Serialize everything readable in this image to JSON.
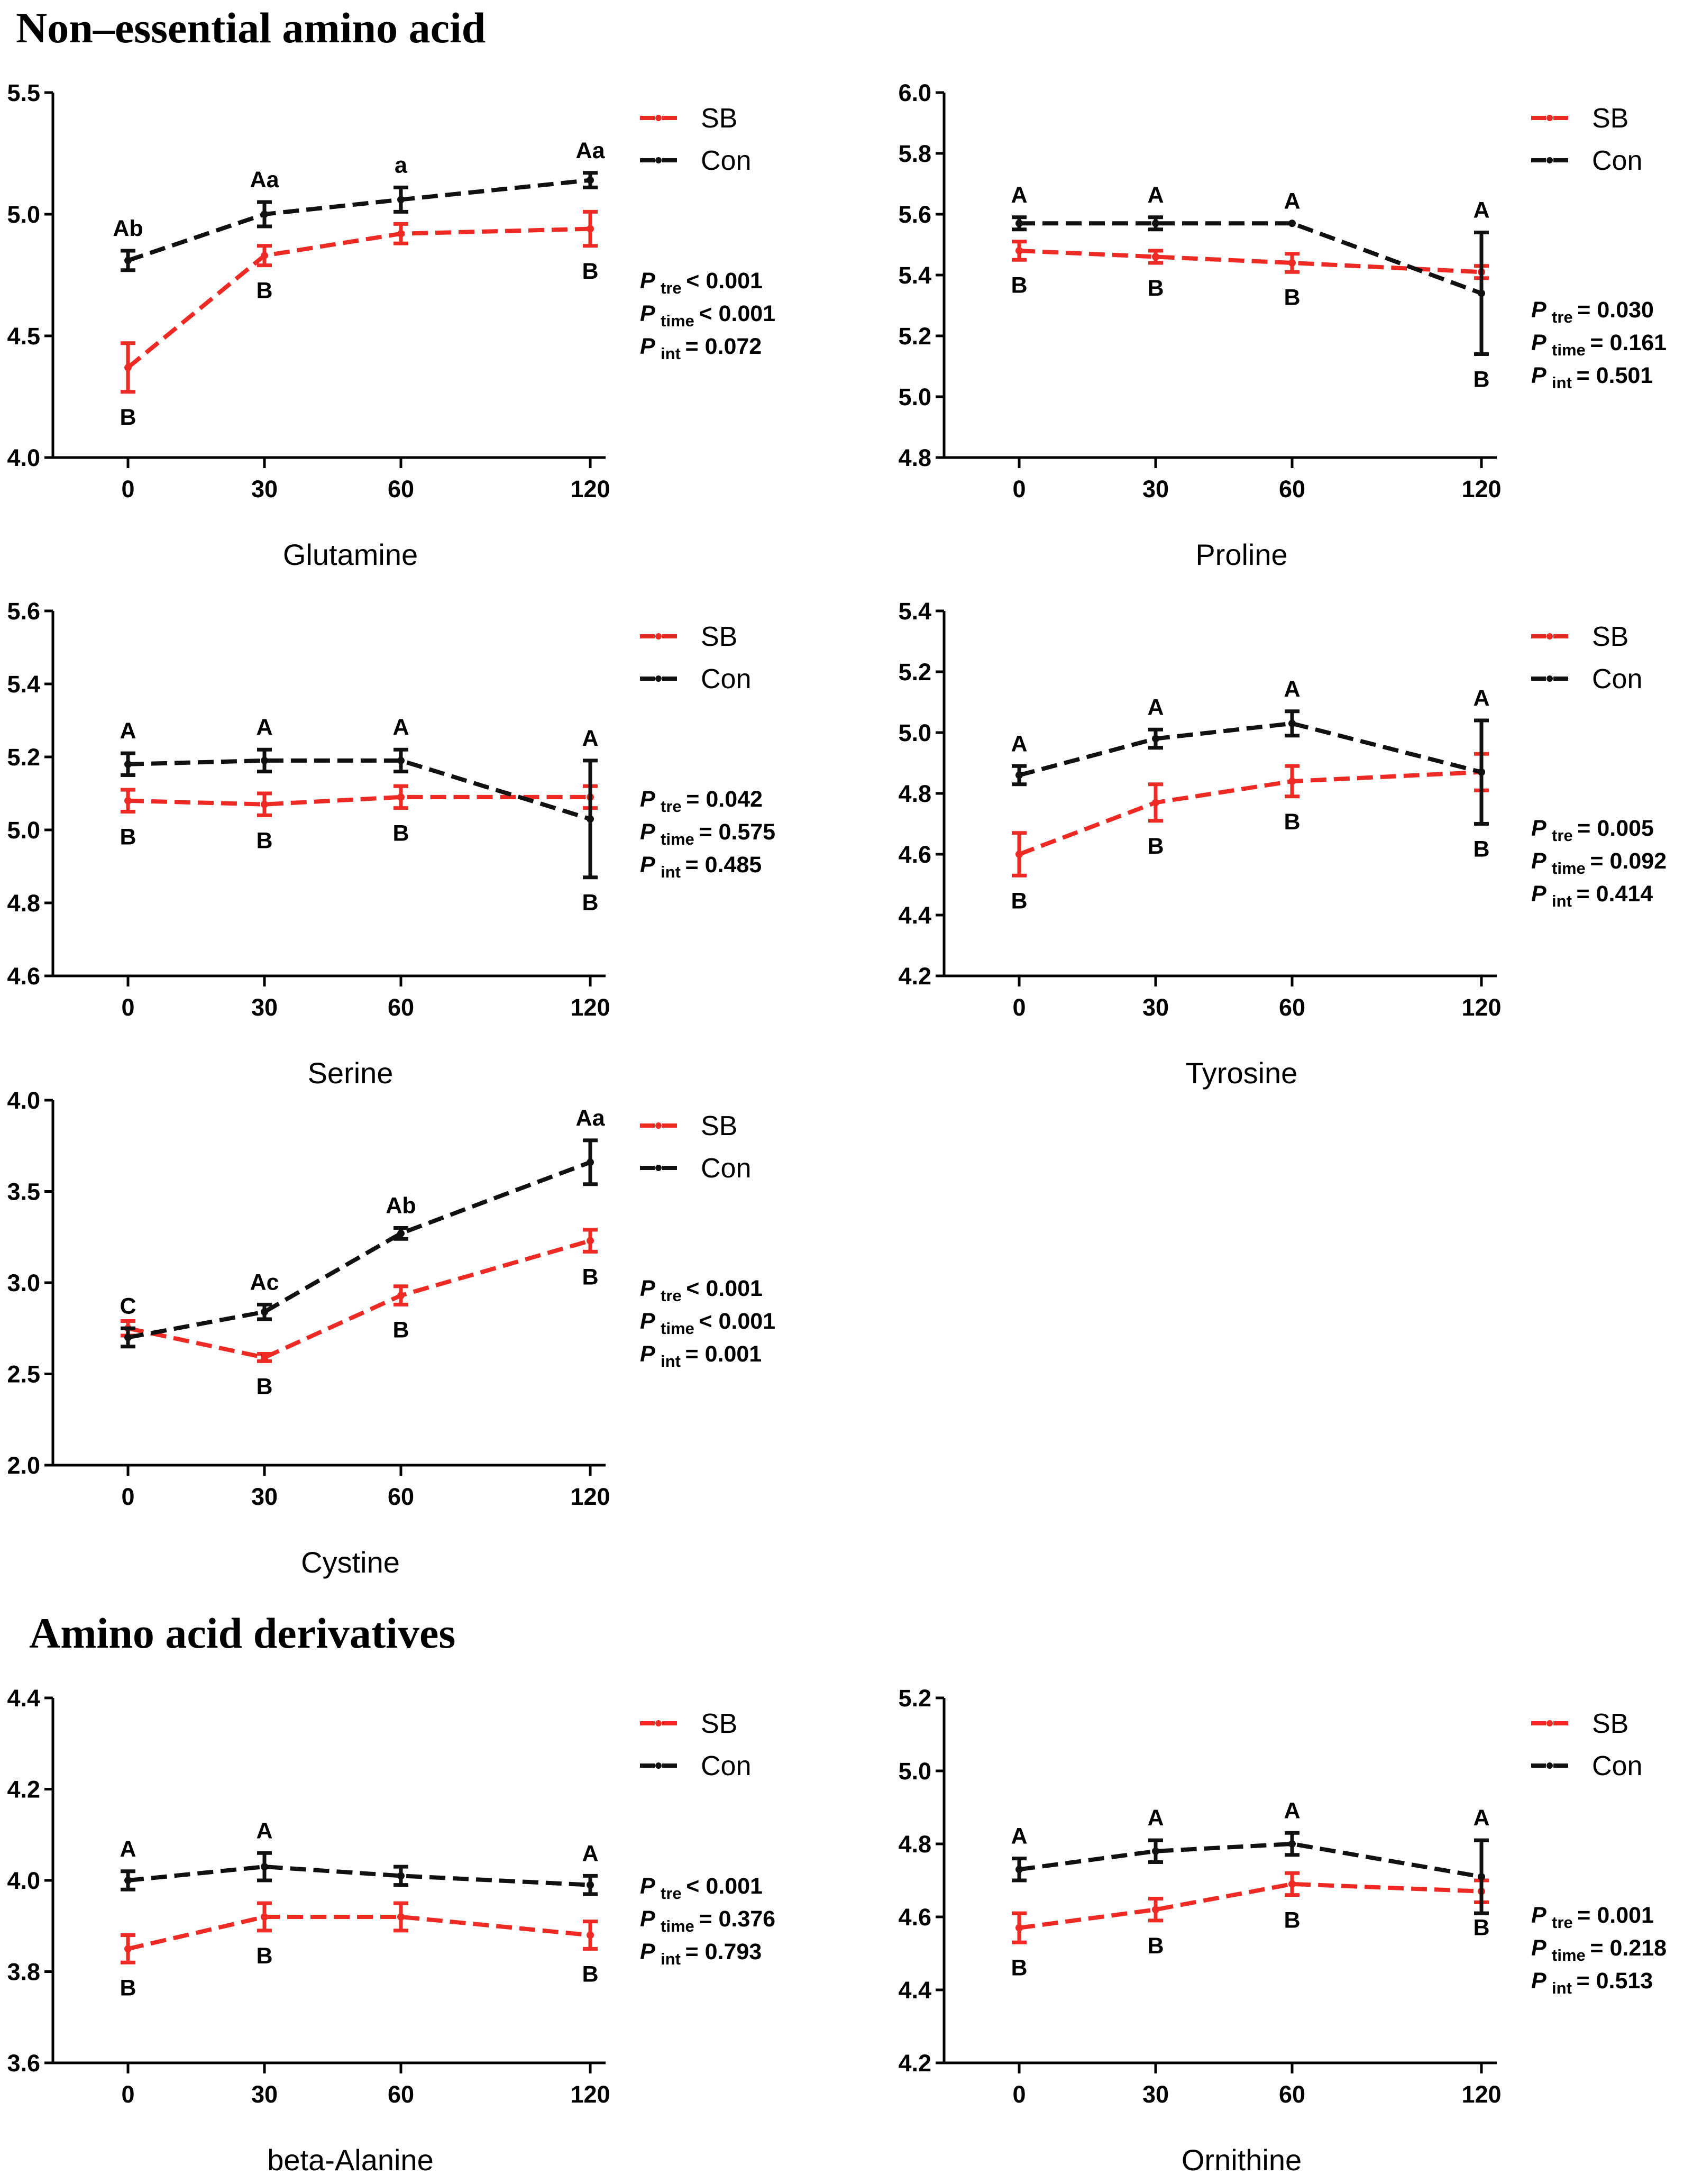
{
  "sections": [
    {
      "title": "Non–essential amino acid"
    },
    {
      "title": "Amino acid derivatives"
    }
  ],
  "colors": {
    "SB": "#ee2a24",
    "Con": "#111111"
  },
  "chart_data": [
    {
      "type": "line",
      "xlabel": "Glutamine",
      "categories": [
        "0",
        "30",
        "60",
        "120"
      ],
      "ylim": [
        4.0,
        5.5
      ],
      "yticks": [
        "4.0",
        "4.5",
        "5.0",
        "5.5"
      ],
      "legend": [
        "SB",
        "Con"
      ],
      "series": [
        {
          "name": "SB",
          "values": [
            4.37,
            4.83,
            4.92,
            4.94
          ],
          "err": [
            0.1,
            0.04,
            0.04,
            0.07
          ],
          "labels": [
            "B",
            "B",
            "",
            "B"
          ]
        },
        {
          "name": "Con",
          "values": [
            4.81,
            5.0,
            5.06,
            5.14
          ],
          "err": [
            0.04,
            0.05,
            0.05,
            0.03
          ],
          "labels": [
            "Ab",
            "Aa",
            "a",
            "Aa"
          ]
        }
      ],
      "pvalues": [
        {
          "sub": "tre",
          "text": "< 0.001"
        },
        {
          "sub": "time",
          "text": "< 0.001"
        },
        {
          "sub": "int",
          "text": "= 0.072"
        }
      ]
    },
    {
      "type": "line",
      "xlabel": "Proline",
      "categories": [
        "0",
        "30",
        "60",
        "120"
      ],
      "ylim": [
        4.8,
        6.0
      ],
      "yticks": [
        "4.8",
        "5.0",
        "5.2",
        "5.4",
        "5.6",
        "5.8",
        "6.0"
      ],
      "legend": [
        "SB",
        "Con"
      ],
      "series": [
        {
          "name": "SB",
          "values": [
            5.48,
            5.46,
            5.44,
            5.41
          ],
          "err": [
            0.03,
            0.02,
            0.03,
            0.02
          ],
          "labels": [
            "B",
            "B",
            "B",
            ""
          ]
        },
        {
          "name": "Con",
          "values": [
            5.57,
            5.57,
            5.57,
            5.34
          ],
          "err": [
            0.02,
            0.02,
            0.0,
            0.2
          ],
          "labels": [
            "A",
            "A",
            "A",
            "A"
          ],
          "lowlabels": [
            "",
            "",
            "",
            "B"
          ]
        }
      ],
      "pvalues": [
        {
          "sub": "tre",
          "text": "= 0.030"
        },
        {
          "sub": "time",
          "text": "= 0.161"
        },
        {
          "sub": "int",
          "text": "= 0.501"
        }
      ]
    },
    {
      "type": "line",
      "xlabel": "Serine",
      "categories": [
        "0",
        "30",
        "60",
        "120"
      ],
      "ylim": [
        4.6,
        5.6
      ],
      "yticks": [
        "4.6",
        "4.8",
        "5.0",
        "5.2",
        "5.4",
        "5.6"
      ],
      "legend": [
        "SB",
        "Con"
      ],
      "series": [
        {
          "name": "SB",
          "values": [
            5.08,
            5.07,
            5.09,
            5.09
          ],
          "err": [
            0.03,
            0.03,
            0.03,
            0.03
          ],
          "labels": [
            "B",
            "B",
            "B",
            ""
          ]
        },
        {
          "name": "Con",
          "values": [
            5.18,
            5.19,
            5.19,
            5.03
          ],
          "err": [
            0.03,
            0.03,
            0.03,
            0.16
          ],
          "labels": [
            "A",
            "A",
            "A",
            "A"
          ],
          "lowlabels": [
            "",
            "",
            "",
            "B"
          ]
        }
      ],
      "pvalues": [
        {
          "sub": "tre",
          "text": "= 0.042"
        },
        {
          "sub": "time",
          "text": "= 0.575"
        },
        {
          "sub": "int",
          "text": "= 0.485"
        }
      ]
    },
    {
      "type": "line",
      "xlabel": "Tyrosine",
      "categories": [
        "0",
        "30",
        "60",
        "120"
      ],
      "ylim": [
        4.2,
        5.4
      ],
      "yticks": [
        "4.2",
        "4.4",
        "4.6",
        "4.8",
        "5.0",
        "5.2",
        "5.4"
      ],
      "legend": [
        "SB",
        "Con"
      ],
      "series": [
        {
          "name": "SB",
          "values": [
            4.6,
            4.77,
            4.84,
            4.87
          ],
          "err": [
            0.07,
            0.06,
            0.05,
            0.06
          ],
          "labels": [
            "B",
            "B",
            "B",
            ""
          ]
        },
        {
          "name": "Con",
          "values": [
            4.86,
            4.98,
            5.03,
            4.87
          ],
          "err": [
            0.03,
            0.03,
            0.04,
            0.17
          ],
          "labels": [
            "A",
            "A",
            "A",
            "A"
          ],
          "lowlabels": [
            "",
            "",
            "",
            "B"
          ]
        }
      ],
      "pvalues": [
        {
          "sub": "tre",
          "text": "= 0.005"
        },
        {
          "sub": "time",
          "text": "= 0.092"
        },
        {
          "sub": "int",
          "text": "= 0.414"
        }
      ]
    },
    {
      "type": "line",
      "xlabel": "Cystine",
      "categories": [
        "0",
        "30",
        "60",
        "120"
      ],
      "ylim": [
        2.0,
        4.0
      ],
      "yticks": [
        "2.0",
        "2.5",
        "3.0",
        "3.5",
        "4.0"
      ],
      "legend": [
        "SB",
        "Con"
      ],
      "series": [
        {
          "name": "SB",
          "values": [
            2.75,
            2.59,
            2.93,
            3.23
          ],
          "err": [
            0.04,
            0.02,
            0.05,
            0.06
          ],
          "labels": [
            "",
            "B",
            "B",
            "B"
          ]
        },
        {
          "name": "Con",
          "values": [
            2.7,
            2.84,
            3.27,
            3.66
          ],
          "err": [
            0.05,
            0.04,
            0.03,
            0.12
          ],
          "labels": [
            "C",
            "Ac",
            "Ab",
            "Aa"
          ]
        }
      ],
      "pvalues": [
        {
          "sub": "tre",
          "text": "< 0.001"
        },
        {
          "sub": "time",
          "text": "< 0.001"
        },
        {
          "sub": "int",
          "text": "= 0.001"
        }
      ]
    },
    {
      "type": "line",
      "xlabel": "beta-Alanine",
      "categories": [
        "0",
        "30",
        "60",
        "120"
      ],
      "ylim": [
        3.6,
        4.4
      ],
      "yticks": [
        "3.6",
        "3.8",
        "4.0",
        "4.2",
        "4.4"
      ],
      "legend": [
        "SB",
        "Con"
      ],
      "series": [
        {
          "name": "SB",
          "values": [
            3.85,
            3.92,
            3.92,
            3.88
          ],
          "err": [
            0.03,
            0.03,
            0.03,
            0.03
          ],
          "labels": [
            "B",
            "B",
            "",
            "B"
          ]
        },
        {
          "name": "Con",
          "values": [
            4.0,
            4.03,
            4.01,
            3.99
          ],
          "err": [
            0.02,
            0.03,
            0.02,
            0.02
          ],
          "labels": [
            "A",
            "A",
            "",
            "A"
          ]
        }
      ],
      "pvalues": [
        {
          "sub": "tre",
          "text": "< 0.001"
        },
        {
          "sub": "time",
          "text": "= 0.376"
        },
        {
          "sub": "int",
          "text": "= 0.793"
        }
      ]
    },
    {
      "type": "line",
      "xlabel": "Ornithine",
      "categories": [
        "0",
        "30",
        "60",
        "120"
      ],
      "ylim": [
        4.2,
        5.2
      ],
      "yticks": [
        "4.2",
        "4.4",
        "4.6",
        "4.8",
        "5.0",
        "5.2"
      ],
      "legend": [
        "SB",
        "Con"
      ],
      "series": [
        {
          "name": "SB",
          "values": [
            4.57,
            4.62,
            4.69,
            4.67
          ],
          "err": [
            0.04,
            0.03,
            0.03,
            0.03
          ],
          "labels": [
            "B",
            "B",
            "B",
            "B"
          ]
        },
        {
          "name": "Con",
          "values": [
            4.73,
            4.78,
            4.8,
            4.71
          ],
          "err": [
            0.03,
            0.03,
            0.03,
            0.1
          ],
          "labels": [
            "A",
            "A",
            "A",
            "A"
          ]
        }
      ],
      "pvalues": [
        {
          "sub": "tre",
          "text": "= 0.001"
        },
        {
          "sub": "time",
          "text": "= 0.218"
        },
        {
          "sub": "int",
          "text": "= 0.513"
        }
      ]
    }
  ]
}
